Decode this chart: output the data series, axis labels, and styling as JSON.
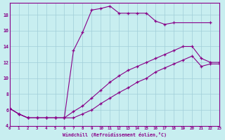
{
  "bg_color": "#c8eef0",
  "line_color": "#880088",
  "xlim": [
    0,
    23
  ],
  "ylim": [
    4,
    19.5
  ],
  "xticks": [
    0,
    1,
    2,
    3,
    4,
    5,
    6,
    7,
    8,
    9,
    10,
    11,
    12,
    13,
    14,
    15,
    16,
    17,
    18,
    19,
    20,
    21,
    22,
    23
  ],
  "yticks": [
    4,
    6,
    8,
    10,
    12,
    14,
    16,
    18
  ],
  "xlabel": "Windchill (Refroidissement éolien,°C)",
  "lines": [
    {
      "x": [
        0,
        1,
        2,
        3,
        4,
        5,
        6,
        7,
        8,
        9,
        10,
        11,
        12,
        13,
        14,
        15,
        16,
        17,
        18,
        22
      ],
      "y": [
        6.2,
        5.5,
        5.0,
        5.0,
        5.0,
        5.0,
        5.0,
        13.5,
        15.8,
        18.6,
        18.8,
        19.1,
        18.2,
        18.2,
        18.2,
        18.2,
        17.2,
        16.8,
        17.0,
        17.0
      ]
    },
    {
      "x": [
        0,
        1,
        2,
        3,
        4,
        5,
        6,
        7,
        8,
        9,
        10,
        11,
        12,
        13,
        14,
        15,
        16,
        17,
        18,
        19,
        20,
        21,
        22,
        23
      ],
      "y": [
        6.2,
        5.5,
        5.0,
        5.0,
        5.0,
        5.0,
        5.0,
        5.8,
        6.5,
        7.5,
        8.5,
        9.5,
        10.3,
        11.0,
        11.5,
        12.0,
        12.5,
        13.0,
        13.5,
        14.0,
        14.0,
        12.5,
        12.0,
        12.0
      ]
    },
    {
      "x": [
        0,
        1,
        2,
        3,
        4,
        5,
        6,
        7,
        8,
        9,
        10,
        11,
        12,
        13,
        14,
        15,
        16,
        17,
        18,
        19,
        20,
        21,
        22,
        23
      ],
      "y": [
        6.2,
        5.5,
        5.0,
        5.0,
        5.0,
        5.0,
        5.0,
        5.0,
        5.5,
        6.0,
        6.8,
        7.5,
        8.2,
        8.8,
        9.5,
        10.0,
        10.8,
        11.3,
        11.8,
        12.3,
        12.8,
        11.5,
        11.8,
        11.8
      ]
    }
  ]
}
